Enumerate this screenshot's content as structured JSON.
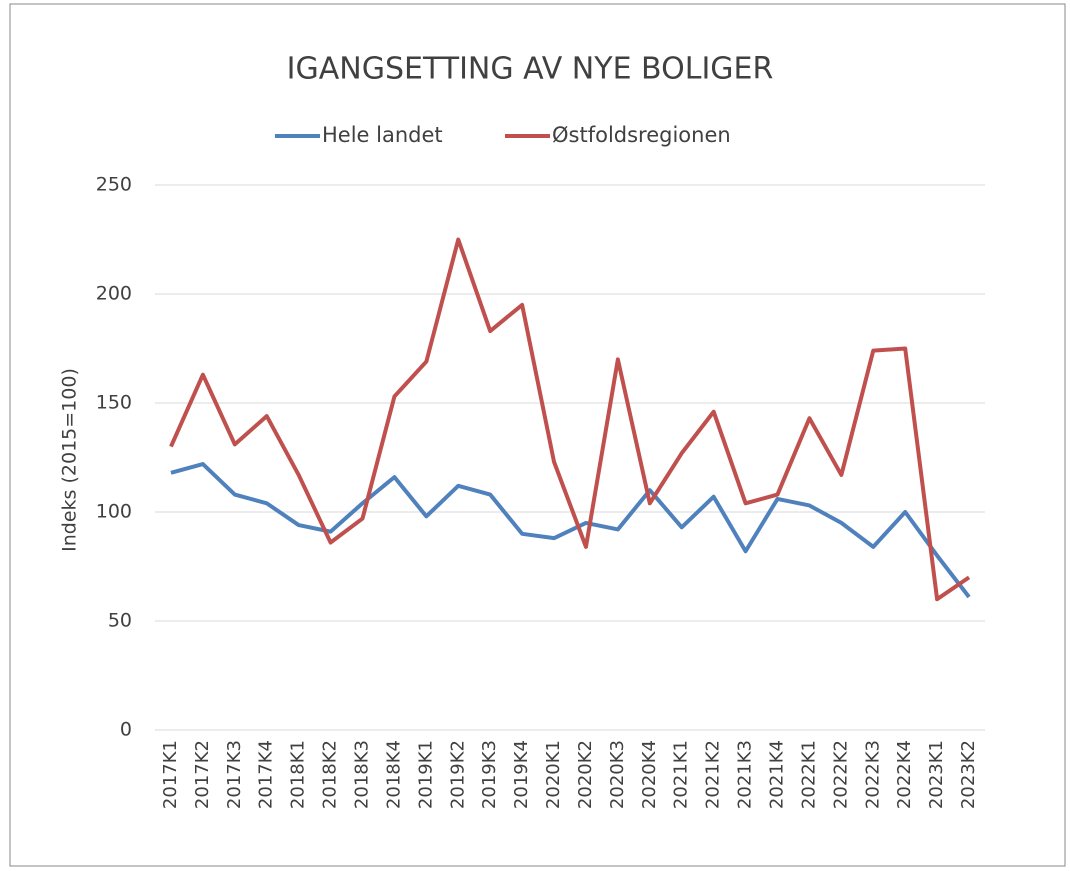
{
  "chart_data": {
    "type": "line",
    "title": "IGANGSETTING AV NYE BOLIGER",
    "y_label": "Indeks (2015=100)",
    "categories": [
      "2017K1",
      "2017K2",
      "2017K3",
      "2017K4",
      "2018K1",
      "2018K2",
      "2018K3",
      "2018K4",
      "2019K1",
      "2019K2",
      "2019K3",
      "2019K4",
      "2020K1",
      "2020K2",
      "2020K3",
      "2020K4",
      "2021K1",
      "2021K2",
      "2021K3",
      "2021K4",
      "2022K1",
      "2022K2",
      "2022K3",
      "2022K4",
      "2023K1",
      "2023K2"
    ],
    "series": [
      {
        "name": "Hele landet",
        "color": "#4f81bd",
        "values": [
          118,
          122,
          108,
          104,
          94,
          91,
          104,
          116,
          98,
          112,
          108,
          90,
          88,
          95,
          92,
          110,
          93,
          107,
          82,
          106,
          103,
          95,
          84,
          100,
          80,
          61
        ]
      },
      {
        "name": "Østfoldsregionen",
        "color": "#c0504d",
        "values": [
          130,
          163,
          131,
          144,
          117,
          86,
          97,
          153,
          169,
          225,
          183,
          195,
          123,
          84,
          170,
          104,
          127,
          146,
          104,
          108,
          143,
          117,
          174,
          175,
          60,
          70
        ]
      }
    ],
    "ylim": [
      0,
      250
    ],
    "yticks": [
      0,
      50,
      100,
      150,
      200,
      250
    ],
    "grid": true,
    "legend": "top"
  }
}
